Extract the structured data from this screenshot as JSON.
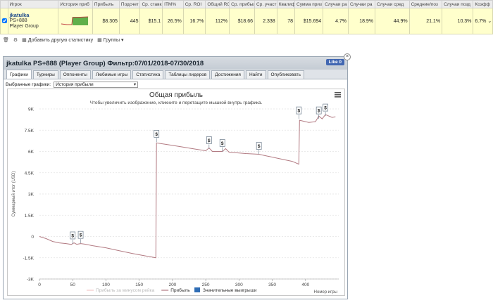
{
  "table": {
    "headers": [
      "",
      "Игрок",
      "История приб",
      "Прибыль",
      "Подсчет",
      "Ср. ставка",
      "ITM%",
      "Ср. ROI",
      "Общий ROI",
      "Ср. прибыль",
      "Ср. участ",
      "Квалиф",
      "Сумма приз",
      "Случаи ра",
      "Случаи ра",
      "Случаи сред",
      "Средние/поз",
      "Случаи позд",
      "Коэфф"
    ],
    "row": {
      "player": "jkatulka",
      "site": "PS+888",
      "group": "Player Group",
      "values": [
        "$8.305",
        "445",
        "$15.1",
        "26.5%",
        "16.7%",
        "112%",
        "$18.66",
        "2.338",
        "78",
        "$15.694",
        "4.7%",
        "18.9%",
        "44.9%",
        "21.1%",
        "10.3%",
        "6.7%"
      ]
    }
  },
  "toolbar": {
    "add_stats": "Добавить другую статистику",
    "groups": "Группы"
  },
  "panel": {
    "title": "jkatulka PS+888 (Player Group) Фильтр:07/01/2018-07/30/2018",
    "fb_like": "Like 0",
    "tabs": [
      "Графики",
      "Турниры",
      "Оппоненты",
      "Любимые игры",
      "Статистика",
      "Таблицы лидеров",
      "Достижения",
      "Найти",
      "Опубликовать"
    ],
    "selector_label": "Выбранные графики:",
    "selector_value": "История прибыли"
  },
  "chart_data": {
    "type": "line",
    "title": "Общая прибыль",
    "subtitle": "Чтобы увеличить изображение, кликните и перетащите мышкой внутрь графика.",
    "ylabel": "Суммарный итог (USD)",
    "xlabel": "Номер игры",
    "ylim": [
      -3000,
      9000
    ],
    "xlim": [
      0,
      450
    ],
    "yticks": [
      "-3K",
      "-1.5K",
      "0",
      "1.5K",
      "3K",
      "4.5K",
      "6K",
      "7.5K",
      "9K"
    ],
    "xticks": [
      "0",
      "50",
      "100",
      "150",
      "200",
      "250",
      "300",
      "350",
      "400"
    ],
    "legend": [
      "Прибыль за минусом рейка",
      "Прибыль",
      "Значительные выигрыши"
    ],
    "legend_colors": [
      "#f2c7c7",
      "#b27a82",
      "#2f6db5"
    ],
    "marker_label": "$",
    "series": [
      {
        "name": "Прибыль",
        "points": [
          [
            0,
            0
          ],
          [
            10,
            -150
          ],
          [
            20,
            -350
          ],
          [
            30,
            -450
          ],
          [
            40,
            -500
          ],
          [
            48,
            -560
          ],
          [
            52,
            -450
          ],
          [
            56,
            -550
          ],
          [
            62,
            -500
          ],
          [
            68,
            -540
          ],
          [
            80,
            -650
          ],
          [
            100,
            -800
          ],
          [
            120,
            -1000
          ],
          [
            140,
            -1200
          ],
          [
            160,
            -1380
          ],
          [
            175,
            -1500
          ],
          [
            176,
            6600
          ],
          [
            190,
            6500
          ],
          [
            210,
            6350
          ],
          [
            230,
            6200
          ],
          [
            250,
            6050
          ],
          [
            255,
            6250
          ],
          [
            260,
            6000
          ],
          [
            275,
            6000
          ],
          [
            280,
            6200
          ],
          [
            285,
            5950
          ],
          [
            310,
            5850
          ],
          [
            330,
            5800
          ],
          [
            340,
            5700
          ],
          [
            360,
            5500
          ],
          [
            380,
            5300
          ],
          [
            390,
            5100
          ],
          [
            391,
            8200
          ],
          [
            405,
            8050
          ],
          [
            415,
            8100
          ],
          [
            420,
            8500
          ],
          [
            425,
            8300
          ],
          [
            430,
            8600
          ],
          [
            440,
            8400
          ],
          [
            445,
            8450
          ]
        ]
      }
    ],
    "big_wins": [
      [
        50,
        -520
      ],
      [
        62,
        -480
      ],
      [
        176,
        6650
      ],
      [
        255,
        6200
      ],
      [
        275,
        6000
      ],
      [
        330,
        5800
      ],
      [
        390,
        8300
      ],
      [
        420,
        8300
      ],
      [
        430,
        8500
      ]
    ]
  }
}
